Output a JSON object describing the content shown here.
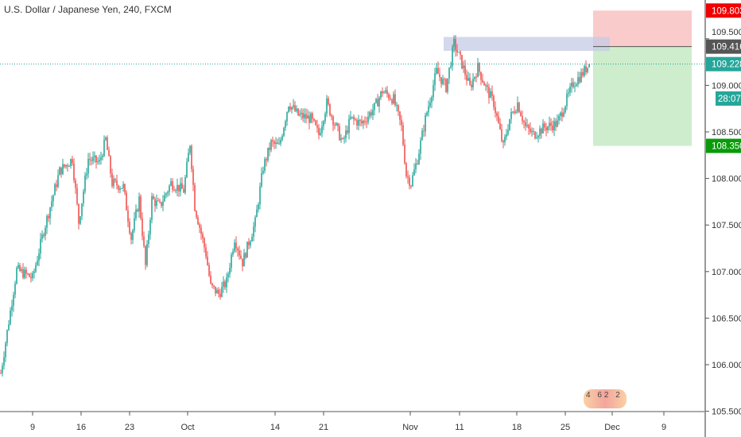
{
  "header": {
    "title": "U.S. Dollar / Japanese Yen, 240, FXCM"
  },
  "colors": {
    "up": "#26a69a",
    "down": "#ef5350",
    "stop_zone": "#f7b9b9",
    "target_zone": "#c8ebc6",
    "zone_box": "#c5cbe6",
    "last_price": "#26a69a",
    "stop_tag": "#f00000",
    "entry_tag": "#555555",
    "target_tag": "#0a9a0a"
  },
  "chart_data": {
    "type": "candlestick",
    "symbol": "USDJPY",
    "interval": "240",
    "ylim": [
      105.45,
      109.95
    ],
    "y_ticks": [
      "105.500",
      "106.000",
      "106.500",
      "107.000",
      "107.500",
      "108.000",
      "108.500",
      "109.000",
      "109.500"
    ],
    "x_ticks": [
      "9",
      "16",
      "23",
      "Oct",
      "14",
      "21",
      "Nov",
      "11",
      "18",
      "25",
      "Dec",
      "9"
    ],
    "price_path": [
      [
        0,
        105.91
      ],
      [
        10,
        107.02
      ],
      [
        20,
        106.93
      ],
      [
        27,
        107.44
      ],
      [
        37,
        108.08
      ],
      [
        45,
        108.21
      ],
      [
        49,
        107.53
      ],
      [
        55,
        108.21
      ],
      [
        62,
        108.17
      ],
      [
        66,
        108.42
      ],
      [
        70,
        107.95
      ],
      [
        77,
        107.91
      ],
      [
        82,
        107.36
      ],
      [
        87,
        107.78
      ],
      [
        91,
        107.06
      ],
      [
        95,
        107.78
      ],
      [
        100,
        107.7
      ],
      [
        107,
        107.95
      ],
      [
        115,
        107.87
      ],
      [
        119,
        108.38
      ],
      [
        122,
        107.7
      ],
      [
        129,
        107.19
      ],
      [
        132,
        106.84
      ],
      [
        137,
        106.76
      ],
      [
        142,
        106.89
      ],
      [
        147,
        107.36
      ],
      [
        152,
        107.1
      ],
      [
        160,
        107.53
      ],
      [
        165,
        108.12
      ],
      [
        170,
        108.38
      ],
      [
        175,
        108.34
      ],
      [
        181,
        108.81
      ],
      [
        187,
        108.68
      ],
      [
        195,
        108.64
      ],
      [
        200,
        108.47
      ],
      [
        205,
        108.81
      ],
      [
        210,
        108.59
      ],
      [
        215,
        108.38
      ],
      [
        220,
        108.64
      ],
      [
        227,
        108.59
      ],
      [
        235,
        108.76
      ],
      [
        240,
        108.94
      ],
      [
        247,
        108.85
      ],
      [
        252,
        108.55
      ],
      [
        255,
        108.04
      ],
      [
        258,
        107.95
      ],
      [
        262,
        108.21
      ],
      [
        267,
        108.64
      ],
      [
        274,
        109.15
      ],
      [
        280,
        108.98
      ],
      [
        285,
        109.45
      ],
      [
        290,
        109.23
      ],
      [
        295,
        108.98
      ],
      [
        300,
        109.19
      ],
      [
        305,
        108.98
      ],
      [
        310,
        108.81
      ],
      [
        316,
        108.34
      ],
      [
        320,
        108.64
      ],
      [
        325,
        108.81
      ],
      [
        330,
        108.55
      ],
      [
        335,
        108.47
      ],
      [
        342,
        108.55
      ],
      [
        350,
        108.59
      ],
      [
        355,
        108.81
      ],
      [
        360,
        109.02
      ],
      [
        365,
        109.11
      ],
      [
        370,
        109.228
      ]
    ],
    "last_price": "109.228",
    "countdown": "28:07",
    "position": {
      "stop": "109.803",
      "entry": "109.416",
      "target": "108.350"
    },
    "zone": {
      "top": 109.52,
      "bottom": 109.37
    }
  },
  "logo": {
    "digits": [
      "4",
      "62",
      "2"
    ]
  }
}
